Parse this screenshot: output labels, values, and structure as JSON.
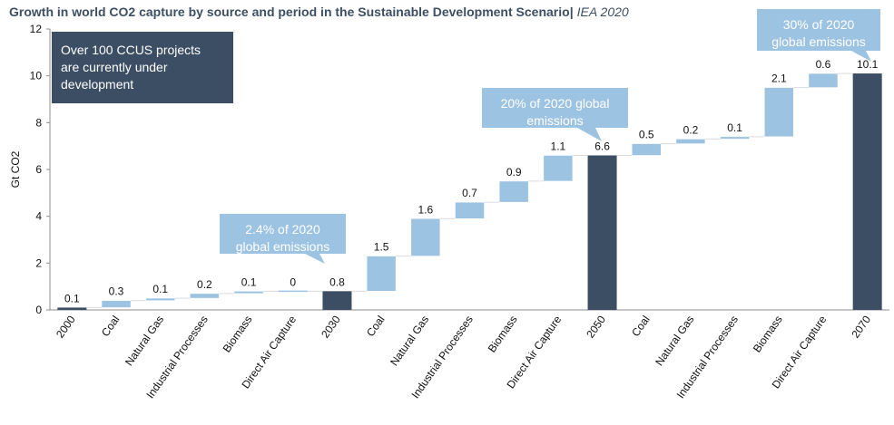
{
  "title": "Growth in world CO2 capture by source and period in the Sustainable Development Scenario",
  "title_separator": "|",
  "source": "IEA 2020",
  "note_box": {
    "lines": [
      "Over 100 CCUS projects",
      "are currently under",
      "development"
    ],
    "color": "#3c4e63"
  },
  "callouts": [
    {
      "lines": [
        "2.4% of 2020",
        "global emissions"
      ]
    },
    {
      "lines": [
        "20% of 2020 global",
        "emissions"
      ]
    },
    {
      "lines": [
        "30% of 2020",
        "global emissions"
      ]
    }
  ],
  "colors": {
    "total": "#3c4e63",
    "increment": "#9dc3e3",
    "callout": "#9dc3e3"
  },
  "chart_data": {
    "type": "bar",
    "subtype": "waterfall",
    "ylabel": "Gt CO2",
    "ylim": [
      0,
      12
    ],
    "yticks": [
      0,
      2,
      4,
      6,
      8,
      10,
      12
    ],
    "grid": false,
    "categories": [
      "2000",
      "Coal",
      "Natural Gas",
      "Industrial Processes",
      "Biomass",
      "Direct Air Capture",
      "2030",
      "Coal",
      "Natural Gas",
      "Industrial Processes",
      "Biomass",
      "Direct Air Capture",
      "2050",
      "Coal",
      "Natural Gas",
      "Industrial Processes",
      "Biomass",
      "Direct Air Capture",
      "2070"
    ],
    "values": [
      0.1,
      0.3,
      0.1,
      0.2,
      0.1,
      0,
      0.8,
      1.5,
      1.6,
      0.7,
      0.9,
      1.1,
      6.6,
      0.5,
      0.2,
      0.1,
      2.1,
      0.6,
      10.1
    ],
    "labels": [
      "0.1",
      "0.3",
      "0.1",
      "0.2",
      "0.1",
      "0",
      "0.8",
      "1.5",
      "1.6",
      "0.7",
      "0.9",
      "1.1",
      "6.6",
      "0.5",
      "0.2",
      "0.1",
      "2.1",
      "0.6",
      "10.1"
    ],
    "is_total": [
      true,
      false,
      false,
      false,
      false,
      false,
      true,
      false,
      false,
      false,
      false,
      false,
      true,
      false,
      false,
      false,
      false,
      false,
      true
    ]
  }
}
